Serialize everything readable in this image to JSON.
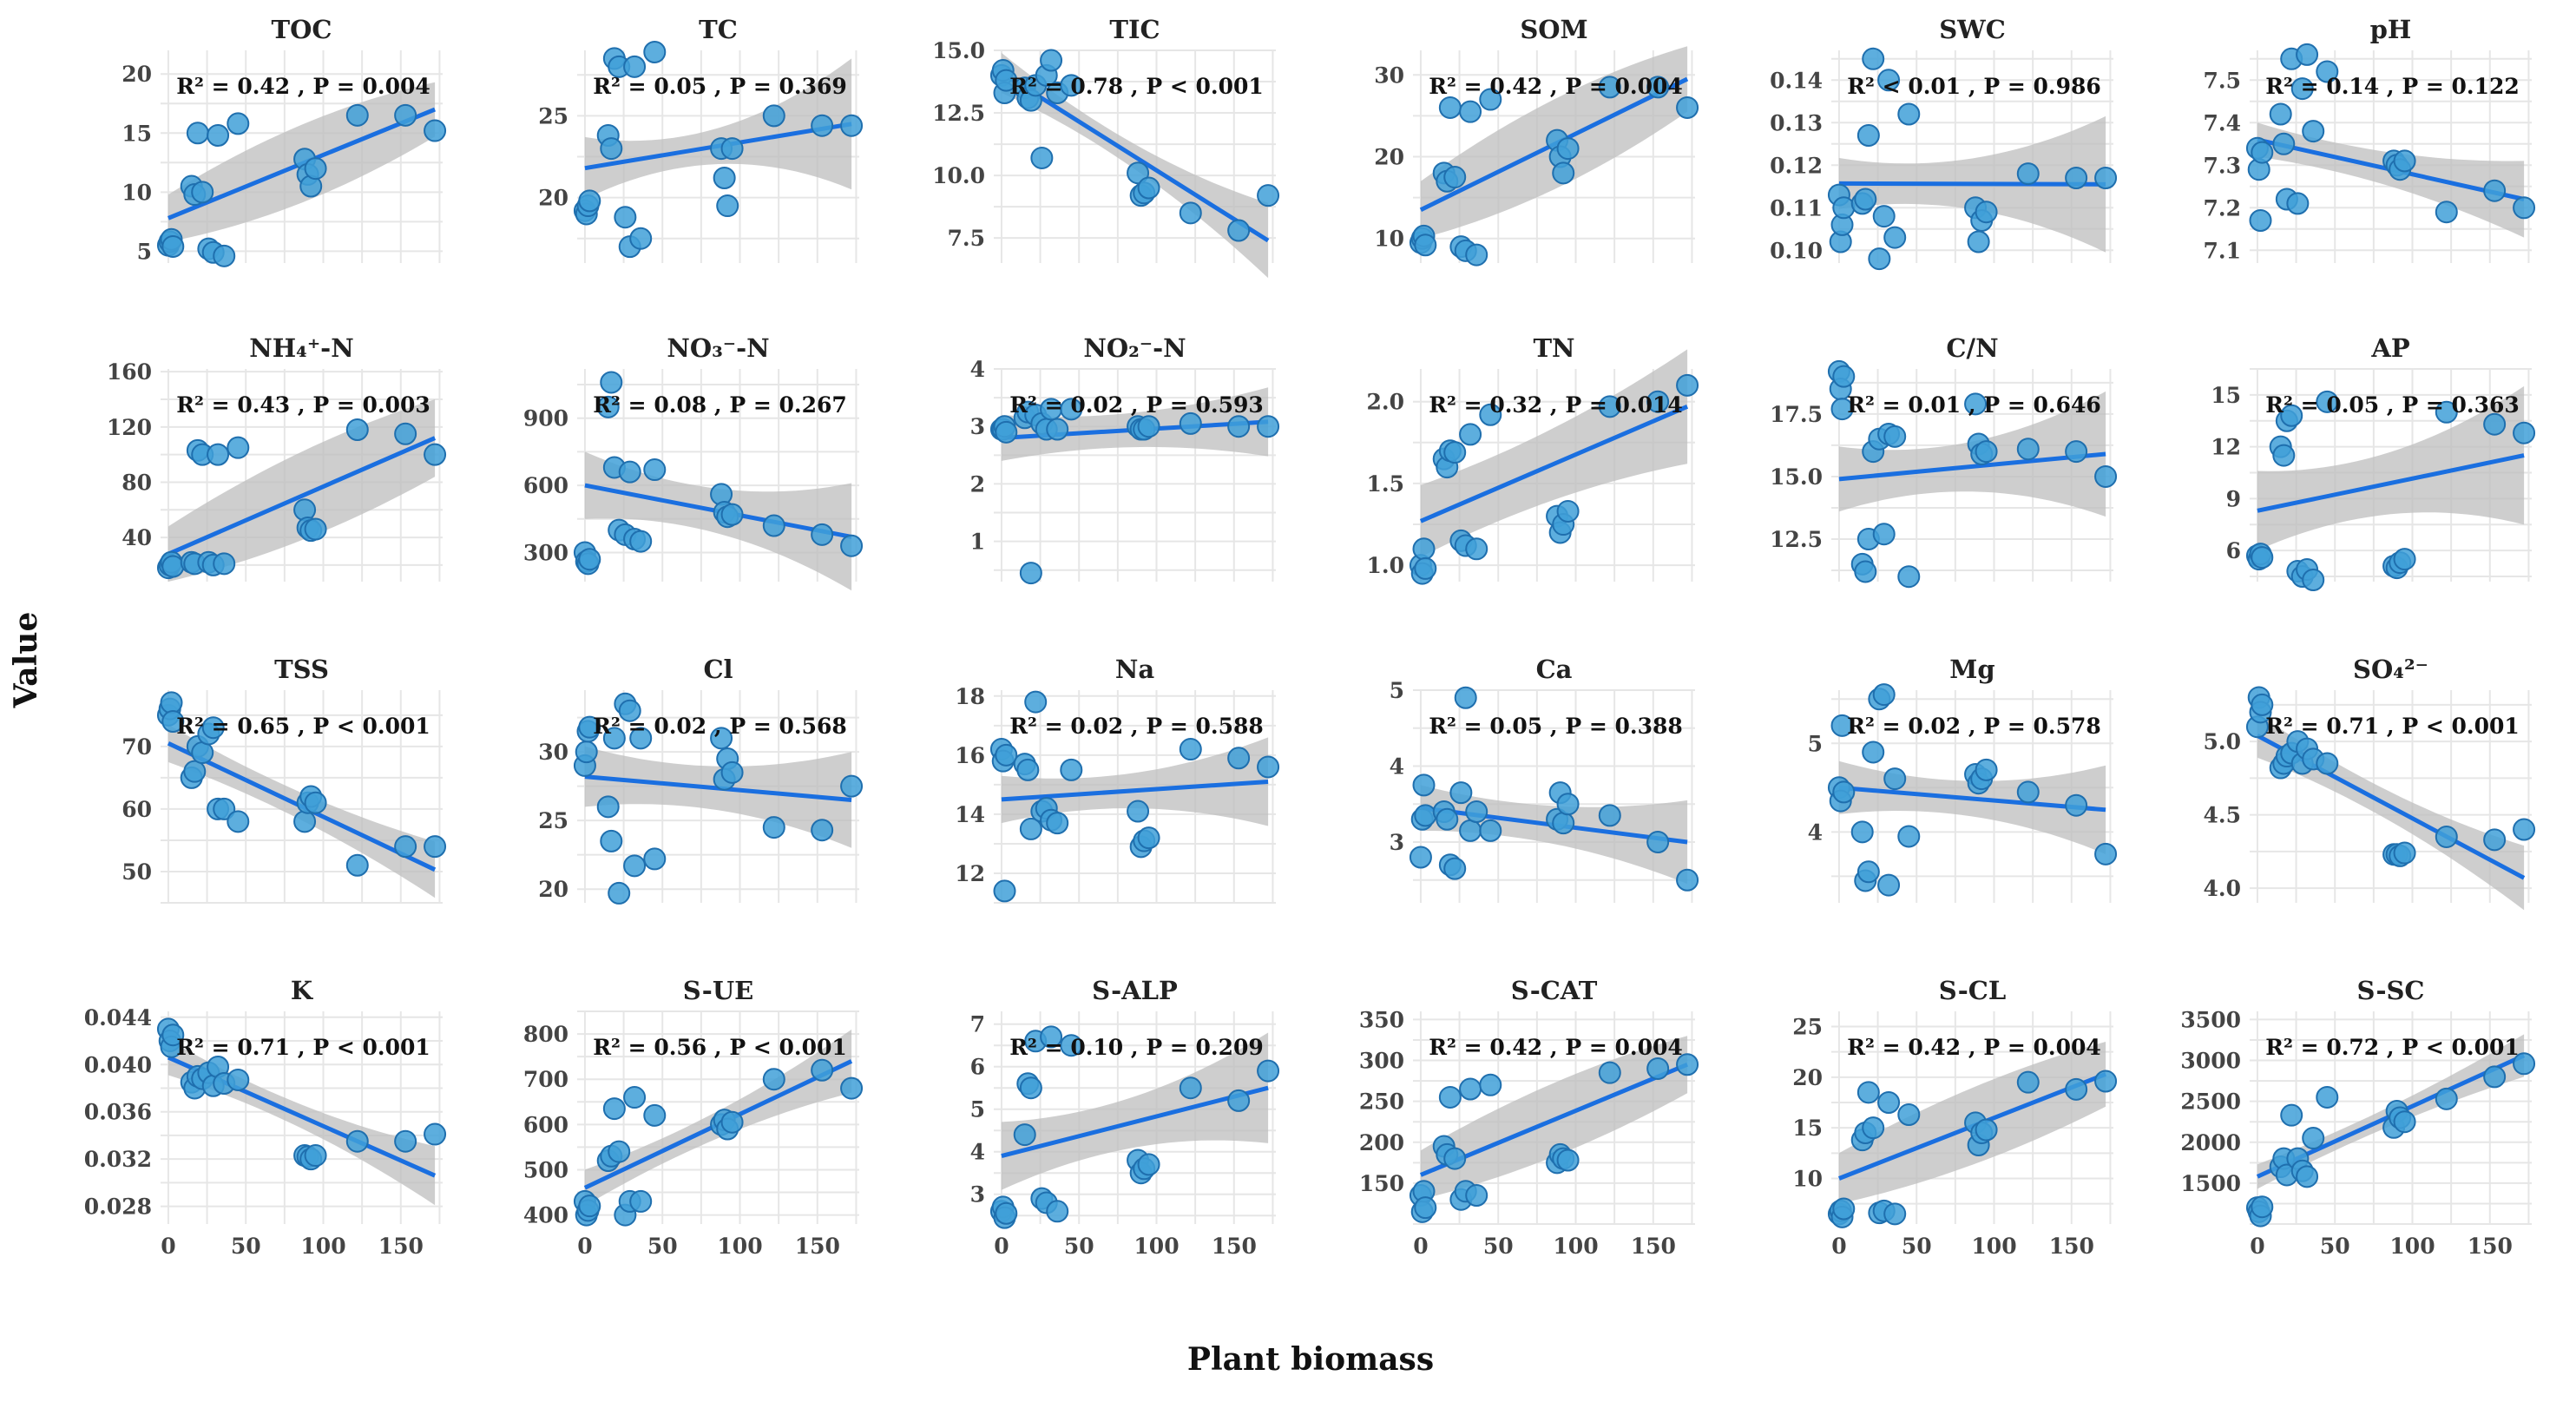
{
  "chart_data": {
    "type": "scatter",
    "layout": "facet-grid-4x6",
    "xlabel": "Plant biomass",
    "ylabel": "Value",
    "colors": {
      "line": "#1a6fe0",
      "point_fill": "#41a0d8",
      "point_stroke": "#1f6fae",
      "band": "#bdbdbd",
      "grid": "#e6e6e6"
    },
    "x": [
      0,
      1,
      2,
      3,
      15,
      17,
      19,
      22,
      26,
      29,
      32,
      36,
      45,
      88,
      90,
      92,
      95,
      122,
      153,
      172
    ],
    "panels": [
      {
        "title": "TOC",
        "annotation": "R² = 0.42 , P = 0.004",
        "ylim": [
          4,
          22
        ],
        "yticks": [
          5,
          10,
          15,
          20
        ],
        "yticklabels": [
          "5",
          "10",
          "15",
          "20"
        ],
        "y": [
          5.5,
          5.8,
          6.0,
          5.4,
          10.5,
          9.8,
          15.0,
          10.0,
          5.2,
          4.9,
          14.8,
          4.6,
          15.8,
          12.8,
          11.5,
          10.5,
          12.0,
          16.5,
          16.5,
          15.2
        ],
        "fit": [
          7.8,
          17.0
        ],
        "ci": [
          2.0,
          3.3,
          2.3
        ]
      },
      {
        "title": "TC",
        "annotation": "R² = 0.05 , P = 0.369",
        "ylim": [
          16,
          29
        ],
        "yticks": [
          20,
          25
        ],
        "yticklabels": [
          "20",
          "25"
        ],
        "y": [
          19.2,
          19.0,
          19.5,
          19.8,
          23.8,
          23.0,
          28.5,
          28.0,
          18.8,
          17.0,
          28.0,
          17.5,
          29.0,
          23.0,
          21.2,
          19.5,
          23.0,
          25.0,
          24.4,
          24.4
        ],
        "fit": [
          21.8,
          24.5
        ],
        "ci": [
          1.9,
          1.1,
          4.0
        ]
      },
      {
        "title": "TIC",
        "annotation": "R² = 0.78 , P < 0.001",
        "ylim": [
          6.5,
          15
        ],
        "yticks": [
          7.5,
          10,
          12.5,
          15
        ],
        "yticklabels": [
          "7.5",
          "10.0",
          "12.5",
          "15.0"
        ],
        "y": [
          14.0,
          14.2,
          13.3,
          13.8,
          13.5,
          13.1,
          13.0,
          13.6,
          10.7,
          14.0,
          14.6,
          13.3,
          13.6,
          10.1,
          9.2,
          9.3,
          9.5,
          8.5,
          7.8,
          9.2
        ],
        "fit": [
          14.1,
          7.4
        ],
        "ci": [
          0.8,
          0.5,
          1.5
        ]
      },
      {
        "title": "SOM",
        "annotation": "R² = 0.42 , P = 0.004",
        "ylim": [
          7,
          33
        ],
        "yticks": [
          10,
          20,
          30
        ],
        "yticklabels": [
          "10",
          "20",
          "30"
        ],
        "y": [
          9.5,
          10.0,
          10.3,
          9.2,
          18.0,
          17.0,
          26.0,
          17.5,
          9.0,
          8.5,
          25.5,
          8.0,
          27.0,
          22.0,
          20.0,
          18.0,
          21.0,
          28.5,
          28.5,
          26.0
        ],
        "fit": [
          13.5,
          29.5
        ],
        "ci": [
          3.5,
          5.5,
          4.0
        ]
      },
      {
        "title": "SWC",
        "annotation": "R² < 0.01 , P = 0.986",
        "ylim": [
          0.097,
          0.147
        ],
        "yticks": [
          0.1,
          0.11,
          0.12,
          0.13,
          0.14
        ],
        "yticklabels": [
          "0.10",
          "0.11",
          "0.12",
          "0.13",
          "0.14"
        ],
        "y": [
          0.113,
          0.102,
          0.106,
          0.11,
          0.111,
          0.112,
          0.127,
          0.145,
          0.098,
          0.108,
          0.14,
          0.103,
          0.132,
          0.11,
          0.102,
          0.107,
          0.109,
          0.118,
          0.117,
          0.117
        ],
        "fit": [
          0.1157,
          0.1155
        ],
        "ci": [
          0.006,
          0.006,
          0.016
        ]
      },
      {
        "title": "pH",
        "annotation": "R² = 0.14 , P = 0.122",
        "ylim": [
          7.07,
          7.57
        ],
        "yticks": [
          7.1,
          7.2,
          7.3,
          7.4,
          7.5
        ],
        "yticklabels": [
          "7.1",
          "7.2",
          "7.3",
          "7.4",
          "7.5"
        ],
        "y": [
          7.34,
          7.29,
          7.17,
          7.33,
          7.42,
          7.35,
          7.22,
          7.55,
          7.21,
          7.48,
          7.56,
          7.38,
          7.52,
          7.31,
          7.3,
          7.29,
          7.31,
          7.19,
          7.24,
          7.2
        ],
        "fit": [
          7.36,
          7.22
        ],
        "ci": [
          0.04,
          0.04,
          0.09
        ]
      },
      {
        "title": "NH₄⁺-N",
        "annotation": "R² = 0.43 , P = 0.003",
        "ylim": [
          8,
          162
        ],
        "yticks": [
          40,
          80,
          120,
          160
        ],
        "yticklabels": [
          "40",
          "80",
          "120",
          "160"
        ],
        "y": [
          18,
          20,
          22,
          19,
          22,
          21,
          103,
          100,
          22,
          20,
          100,
          21,
          105,
          60,
          47,
          45,
          46,
          118,
          115,
          100
        ],
        "fit": [
          28,
          112
        ],
        "ci": [
          20,
          32,
          28
        ]
      },
      {
        "title": "NO₃⁻-N",
        "annotation": "R² = 0.08 , P = 0.267",
        "ylim": [
          170,
          1120
        ],
        "yticks": [
          300,
          600,
          900
        ],
        "yticklabels": [
          "300",
          "600",
          "900"
        ],
        "y": [
          300,
          260,
          250,
          270,
          950,
          1060,
          680,
          400,
          380,
          660,
          360,
          350,
          670,
          560,
          480,
          460,
          470,
          420,
          380,
          330
        ],
        "fit": [
          600,
          370
        ],
        "ci": [
          150,
          100,
          240
        ]
      },
      {
        "title": "NO₂⁻-N",
        "annotation": "R² = 0.02 , P = 0.593",
        "ylim": [
          0.3,
          4
        ],
        "yticks": [
          1,
          2,
          3,
          4
        ],
        "yticklabels": [
          "1",
          "2",
          "3",
          "4"
        ],
        "y": [
          2.95,
          2.95,
          3.0,
          2.9,
          3.15,
          3.25,
          0.45,
          3.2,
          3.05,
          2.95,
          3.3,
          2.95,
          3.3,
          3.0,
          2.95,
          2.95,
          3.0,
          3.05,
          3.0,
          3.0
        ],
        "fit": [
          2.8,
          3.08
        ],
        "ci": [
          0.4,
          0.3,
          0.6
        ]
      },
      {
        "title": "TN",
        "annotation": "R² = 0.32 , P = 0.014",
        "ylim": [
          0.9,
          2.2
        ],
        "yticks": [
          1.0,
          1.5,
          2.0
        ],
        "yticklabels": [
          "1.0",
          "1.5",
          "2.0"
        ],
        "y": [
          1.0,
          0.95,
          1.1,
          0.98,
          1.65,
          1.6,
          1.7,
          1.69,
          1.15,
          1.12,
          1.8,
          1.1,
          1.92,
          1.3,
          1.2,
          1.25,
          1.33,
          1.97,
          2.0,
          2.1
        ],
        "fit": [
          1.27,
          1.97
        ],
        "ci": [
          0.22,
          0.22,
          0.35
        ]
      },
      {
        "title": "C/N",
        "annotation": "R² = 0.01 , P = 0.646",
        "ylim": [
          10.8,
          19.3
        ],
        "yticks": [
          12.5,
          15.0,
          17.5
        ],
        "yticklabels": [
          "12.5",
          "15.0",
          "17.5"
        ],
        "y": [
          19.2,
          18.5,
          17.7,
          19.0,
          11.5,
          11.2,
          12.5,
          16.0,
          16.5,
          12.7,
          16.7,
          16.6,
          11.0,
          17.9,
          16.3,
          15.9,
          16.0,
          16.1,
          16.0,
          15.0
        ],
        "fit": [
          14.9,
          15.9
        ],
        "ci": [
          1.3,
          1.0,
          2.5
        ]
      },
      {
        "title": "AP",
        "annotation": "R² = 0.05 , P = 0.363",
        "ylim": [
          4.2,
          16.5
        ],
        "yticks": [
          6,
          9,
          12,
          15
        ],
        "yticklabels": [
          "6",
          "9",
          "12",
          "15"
        ],
        "y": [
          5.7,
          5.5,
          5.8,
          5.6,
          12.0,
          11.5,
          13.5,
          13.8,
          4.8,
          4.5,
          4.9,
          4.3,
          14.6,
          5.1,
          5.0,
          5.3,
          5.5,
          14.0,
          13.3,
          12.8
        ],
        "fit": [
          8.3,
          11.5
        ],
        "ci": [
          2.3,
          1.8,
          4.0
        ]
      },
      {
        "title": "TSS",
        "annotation": "R² = 0.65 , P < 0.001",
        "ylim": [
          45,
          79
        ],
        "yticks": [
          50,
          60,
          70
        ],
        "yticklabels": [
          "50",
          "60",
          "70"
        ],
        "y": [
          75,
          76,
          77,
          74,
          65,
          66,
          70,
          69,
          72,
          73,
          60,
          60,
          58,
          58,
          61,
          62,
          61,
          51,
          54,
          54
        ],
        "fit": [
          70.5,
          50.3
        ],
        "ci": [
          3.0,
          2.2,
          4.5
        ]
      },
      {
        "title": "Cl",
        "annotation": "R² = 0.02 , P = 0.568",
        "ylim": [
          19,
          34.5
        ],
        "yticks": [
          20,
          25,
          30
        ],
        "yticklabels": [
          "20",
          "25",
          "30"
        ],
        "y": [
          29,
          30,
          31.5,
          31.8,
          26,
          23.5,
          31.0,
          19.7,
          33.5,
          33.0,
          21.7,
          31.0,
          22.2,
          31.0,
          28.0,
          29.5,
          28.5,
          24.5,
          24.3,
          27.5
        ],
        "fit": [
          28.2,
          26.5
        ],
        "ci": [
          2.2,
          1.6,
          3.5
        ]
      },
      {
        "title": "Na",
        "annotation": "R² = 0.02 , P = 0.588",
        "ylim": [
          11,
          18.2
        ],
        "yticks": [
          12,
          14,
          16,
          18
        ],
        "yticklabels": [
          "12",
          "14",
          "16",
          "18"
        ],
        "y": [
          16.2,
          15.8,
          11.4,
          16.0,
          15.7,
          15.5,
          13.5,
          17.8,
          14.1,
          14.2,
          13.8,
          13.7,
          15.5,
          14.1,
          12.9,
          13.1,
          13.2,
          16.2,
          15.9,
          15.6
        ],
        "fit": [
          14.5,
          15.1
        ],
        "ci": [
          0.8,
          0.6,
          1.5
        ]
      },
      {
        "title": "Ca",
        "annotation": "R² = 0.05 , P = 0.388",
        "ylim": [
          2.2,
          5
        ],
        "yticks": [
          3,
          4,
          5
        ],
        "yticklabels": [
          "3",
          "4",
          "5"
        ],
        "y": [
          2.8,
          3.3,
          3.75,
          3.35,
          3.4,
          3.3,
          2.7,
          2.65,
          3.65,
          4.9,
          3.15,
          3.4,
          3.15,
          3.3,
          3.65,
          3.25,
          3.5,
          3.35,
          3.0,
          2.5
        ],
        "fit": [
          3.45,
          3.0
        ],
        "ci": [
          0.3,
          0.25,
          0.55
        ]
      },
      {
        "title": "Mg",
        "annotation": "R² = 0.02 , P = 0.578",
        "ylim": [
          3.2,
          5.6
        ],
        "yticks": [
          4,
          5
        ],
        "yticklabels": [
          "4",
          "5"
        ],
        "y": [
          4.5,
          4.35,
          5.2,
          4.45,
          4.0,
          3.45,
          3.55,
          4.9,
          5.5,
          5.55,
          3.4,
          4.6,
          3.95,
          4.65,
          4.55,
          4.6,
          4.7,
          4.45,
          4.3,
          3.75
        ],
        "fit": [
          4.5,
          4.25
        ],
        "ci": [
          0.3,
          0.2,
          0.5
        ]
      },
      {
        "title": "SO₄²⁻",
        "annotation": "R² = 0.71 , P < 0.001",
        "ylim": [
          3.9,
          5.35
        ],
        "yticks": [
          4.0,
          4.5,
          5.0
        ],
        "yticklabels": [
          "4.0",
          "4.5",
          "5.0"
        ],
        "y": [
          5.1,
          5.3,
          5.2,
          5.25,
          4.82,
          4.85,
          4.9,
          4.92,
          5.0,
          4.85,
          4.95,
          4.88,
          4.85,
          4.23,
          4.23,
          4.22,
          4.24,
          4.35,
          4.33,
          4.4
        ],
        "fit": [
          5.04,
          4.07
        ],
        "ci": [
          0.15,
          0.1,
          0.22
        ]
      },
      {
        "title": "K",
        "annotation": "R² = 0.71 , P < 0.001",
        "ylim": [
          0.0265,
          0.0445
        ],
        "yticks": [
          0.028,
          0.032,
          0.036,
          0.04,
          0.044
        ],
        "yticklabels": [
          "0.028",
          "0.032",
          "0.036",
          "0.040",
          "0.044"
        ],
        "y": [
          0.043,
          0.042,
          0.0415,
          0.0425,
          0.0385,
          0.038,
          0.039,
          0.0388,
          0.0393,
          0.0382,
          0.0398,
          0.0384,
          0.0387,
          0.0323,
          0.0322,
          0.032,
          0.0323,
          0.0335,
          0.0335,
          0.0341
        ],
        "fit": [
          0.0406,
          0.0306
        ],
        "ci": [
          0.0015,
          0.001,
          0.0025
        ]
      },
      {
        "title": "S-UE",
        "annotation": "R² = 0.56 , P < 0.001",
        "ylim": [
          380,
          850
        ],
        "yticks": [
          400,
          500,
          600,
          700,
          800
        ],
        "yticklabels": [
          "400",
          "500",
          "600",
          "700",
          "800"
        ],
        "y": [
          430,
          400,
          410,
          420,
          520,
          530,
          635,
          540,
          400,
          430,
          660,
          430,
          620,
          600,
          610,
          590,
          605,
          700,
          720,
          680
        ],
        "fit": [
          460,
          740
        ],
        "ci": [
          40,
          30,
          70
        ]
      },
      {
        "title": "S-ALP",
        "annotation": "R² = 0.10 , P = 0.209",
        "ylim": [
          2.3,
          7.3
        ],
        "yticks": [
          3,
          4,
          5,
          6,
          7
        ],
        "yticklabels": [
          "3",
          "4",
          "5",
          "6",
          "7"
        ],
        "y": [
          2.6,
          2.7,
          2.45,
          2.55,
          4.4,
          5.6,
          5.5,
          6.6,
          2.9,
          2.8,
          6.7,
          2.6,
          6.5,
          3.8,
          3.5,
          3.6,
          3.7,
          5.5,
          5.2,
          5.9
        ],
        "fit": [
          3.9,
          5.5
        ],
        "ci": [
          0.8,
          0.6,
          1.3
        ]
      },
      {
        "title": "S-CAT",
        "annotation": "R² = 0.42 , P = 0.004",
        "ylim": [
          100,
          360
        ],
        "yticks": [
          150,
          200,
          250,
          300,
          350
        ],
        "yticklabels": [
          "150",
          "200",
          "250",
          "300",
          "350"
        ],
        "y": [
          135,
          115,
          140,
          120,
          195,
          185,
          255,
          180,
          130,
          140,
          265,
          135,
          270,
          175,
          185,
          180,
          178,
          285,
          290,
          295
        ],
        "fit": [
          160,
          295
        ],
        "ci": [
          30,
          45,
          35
        ]
      },
      {
        "title": "S-CL",
        "annotation": "R² = 0.42 , P = 0.004",
        "ylim": [
          5.5,
          26.5
        ],
        "yticks": [
          10,
          15,
          20,
          25
        ],
        "yticklabels": [
          "10",
          "15",
          "20",
          "25"
        ],
        "y": [
          6.5,
          6.8,
          6.2,
          7.0,
          13.8,
          14.5,
          18.5,
          15.0,
          6.6,
          6.8,
          17.5,
          6.5,
          16.3,
          15.5,
          13.3,
          14.5,
          14.8,
          19.5,
          18.8,
          19.6
        ],
        "fit": [
          10.0,
          20.3
        ],
        "ci": [
          2.5,
          3.8,
          3.2
        ]
      },
      {
        "title": "S-SC",
        "annotation": "R² = 0.72 , P < 0.001",
        "ylim": [
          1000,
          3600
        ],
        "yticks": [
          1500,
          2000,
          2500,
          3000,
          3500
        ],
        "yticklabels": [
          "1500",
          "2000",
          "2500",
          "3000",
          "3500"
        ],
        "y": [
          1200,
          1150,
          1100,
          1210,
          1700,
          1800,
          1600,
          2330,
          1800,
          1650,
          1580,
          2050,
          2550,
          2180,
          2380,
          2300,
          2250,
          2530,
          2800,
          2960
        ],
        "fit": [
          1580,
          3060
        ],
        "ci": [
          150,
          120,
          260
        ]
      }
    ]
  }
}
